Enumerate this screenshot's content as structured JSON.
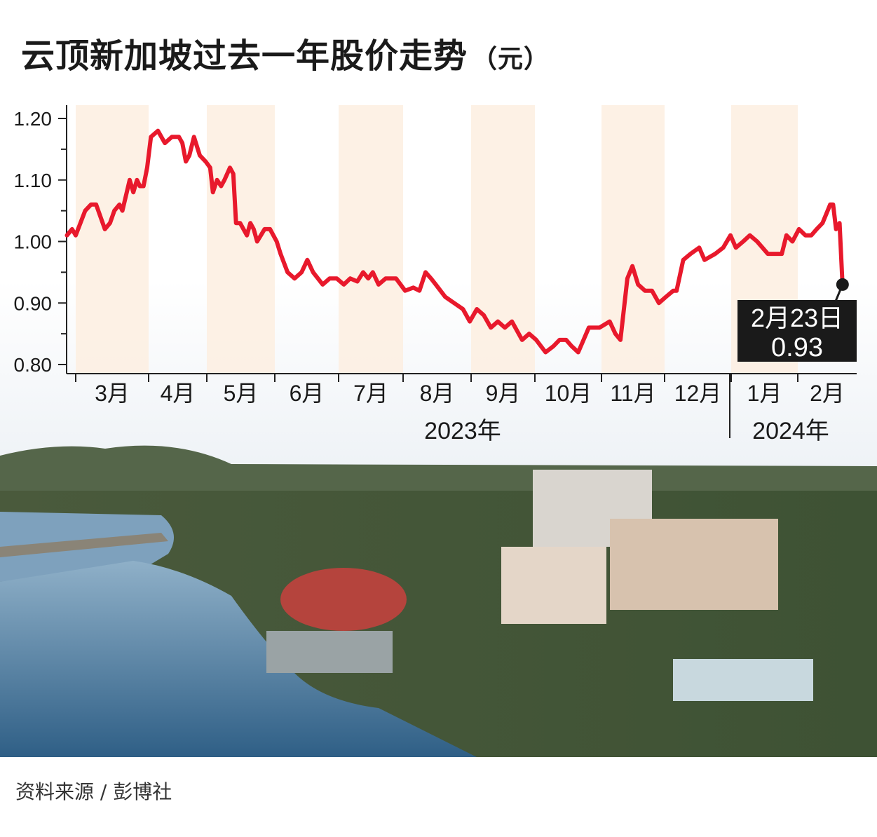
{
  "title": "云顶新加坡过去一年股价走势",
  "unit": "（元）",
  "source": "资料来源 / 彭博社",
  "colors": {
    "line": "#e8192c",
    "band": "#fdeee0",
    "axis": "#222222",
    "label_bg": "#1a1a1a"
  },
  "chart_data": {
    "type": "line",
    "title": "云顶新加坡过去一年股价走势（元）",
    "xlabel": "",
    "ylabel": "元",
    "ylim": [
      0.8,
      1.2
    ],
    "yticks": [
      "1.20",
      "1.10",
      "1.00",
      "0.90",
      "0.80"
    ],
    "ytick_values": [
      1.2,
      1.1,
      1.0,
      0.9,
      0.8
    ],
    "x_unit": "months since 2023-03-01",
    "months": [
      "3月",
      "4月",
      "5月",
      "6月",
      "7月",
      "8月",
      "9月",
      "10月",
      "11月",
      "12月",
      "1月",
      "2月"
    ],
    "years": [
      {
        "label": "2023年"
      },
      {
        "label": "2024年"
      }
    ],
    "shaded_months": [
      "3月",
      "5月",
      "7月",
      "9月",
      "11月",
      "1月"
    ],
    "grid": false,
    "series": [
      {
        "name": "股价",
        "points": [
          [
            -0.12,
            1.01
          ],
          [
            -0.05,
            1.02
          ],
          [
            0,
            1.01
          ],
          [
            0.13,
            1.05
          ],
          [
            0.21,
            1.06
          ],
          [
            0.28,
            1.06
          ],
          [
            0.4,
            1.02
          ],
          [
            0.47,
            1.03
          ],
          [
            0.53,
            1.05
          ],
          [
            0.6,
            1.06
          ],
          [
            0.64,
            1.05
          ],
          [
            0.74,
            1.1
          ],
          [
            0.79,
            1.08
          ],
          [
            0.84,
            1.1
          ],
          [
            0.88,
            1.09
          ],
          [
            0.93,
            1.09
          ],
          [
            0.98,
            1.12
          ],
          [
            1.04,
            1.17
          ],
          [
            1.16,
            1.18
          ],
          [
            1.28,
            1.16
          ],
          [
            1.4,
            1.17
          ],
          [
            1.52,
            1.17
          ],
          [
            1.58,
            1.16
          ],
          [
            1.64,
            1.13
          ],
          [
            1.7,
            1.14
          ],
          [
            1.78,
            1.17
          ],
          [
            1.88,
            1.14
          ],
          [
            1.98,
            1.13
          ],
          [
            2.05,
            1.12
          ],
          [
            2.09,
            1.08
          ],
          [
            2.15,
            1.1
          ],
          [
            2.21,
            1.09
          ],
          [
            2.26,
            1.1
          ],
          [
            2.34,
            1.12
          ],
          [
            2.39,
            1.11
          ],
          [
            2.43,
            1.03
          ],
          [
            2.49,
            1.03
          ],
          [
            2.59,
            1.01
          ],
          [
            2.64,
            1.03
          ],
          [
            2.69,
            1.02
          ],
          [
            2.74,
            1.0
          ],
          [
            2.85,
            1.02
          ],
          [
            2.93,
            1.02
          ],
          [
            3.03,
            1.0
          ],
          [
            3.09,
            0.98
          ],
          [
            3.2,
            0.95
          ],
          [
            3.31,
            0.94
          ],
          [
            3.42,
            0.95
          ],
          [
            3.51,
            0.97
          ],
          [
            3.6,
            0.95
          ],
          [
            3.75,
            0.93
          ],
          [
            3.86,
            0.94
          ],
          [
            3.97,
            0.94
          ],
          [
            4.08,
            0.93
          ],
          [
            4.18,
            0.94
          ],
          [
            4.29,
            0.935
          ],
          [
            4.38,
            0.95
          ],
          [
            4.46,
            0.94
          ],
          [
            4.53,
            0.95
          ],
          [
            4.62,
            0.93
          ],
          [
            4.73,
            0.94
          ],
          [
            4.82,
            0.94
          ],
          [
            4.89,
            0.94
          ],
          [
            5.03,
            0.92
          ],
          [
            5.15,
            0.925
          ],
          [
            5.24,
            0.92
          ],
          [
            5.33,
            0.95
          ],
          [
            5.41,
            0.94
          ],
          [
            5.48,
            0.93
          ],
          [
            5.62,
            0.91
          ],
          [
            5.75,
            0.9
          ],
          [
            5.88,
            0.89
          ],
          [
            5.98,
            0.87
          ],
          [
            6.09,
            0.89
          ],
          [
            6.2,
            0.88
          ],
          [
            6.31,
            0.86
          ],
          [
            6.42,
            0.87
          ],
          [
            6.53,
            0.86
          ],
          [
            6.64,
            0.87
          ],
          [
            6.8,
            0.84
          ],
          [
            6.91,
            0.85
          ],
          [
            7.02,
            0.84
          ],
          [
            7.16,
            0.82
          ],
          [
            7.28,
            0.83
          ],
          [
            7.37,
            0.84
          ],
          [
            7.47,
            0.84
          ],
          [
            7.55,
            0.83
          ],
          [
            7.65,
            0.82
          ],
          [
            7.81,
            0.86
          ],
          [
            7.97,
            0.86
          ],
          [
            8.13,
            0.87
          ],
          [
            8.22,
            0.85
          ],
          [
            8.3,
            0.84
          ],
          [
            8.41,
            0.94
          ],
          [
            8.49,
            0.96
          ],
          [
            8.58,
            0.93
          ],
          [
            8.69,
            0.92
          ],
          [
            8.8,
            0.92
          ],
          [
            8.91,
            0.9
          ],
          [
            9.02,
            0.91
          ],
          [
            9.13,
            0.92
          ],
          [
            9.18,
            0.92
          ],
          [
            9.28,
            0.97
          ],
          [
            9.39,
            0.98
          ],
          [
            9.52,
            0.99
          ],
          [
            9.6,
            0.97
          ],
          [
            9.76,
            0.98
          ],
          [
            9.88,
            0.99
          ],
          [
            9.99,
            1.01
          ],
          [
            10.07,
            0.99
          ],
          [
            10.18,
            1.0
          ],
          [
            10.28,
            1.01
          ],
          [
            10.39,
            1.0
          ],
          [
            10.55,
            0.98
          ],
          [
            10.63,
            0.98
          ],
          [
            10.76,
            0.98
          ],
          [
            10.83,
            1.01
          ],
          [
            10.92,
            1.0
          ],
          [
            11.02,
            1.02
          ],
          [
            11.13,
            1.01
          ],
          [
            11.23,
            1.01
          ],
          [
            11.32,
            1.02
          ],
          [
            11.42,
            1.03
          ],
          [
            11.55,
            1.06
          ],
          [
            11.6,
            1.06
          ],
          [
            11.65,
            1.02
          ],
          [
            11.71,
            1.03
          ],
          [
            11.76,
            0.93
          ]
        ]
      }
    ],
    "annotation": {
      "date": "2月23日",
      "value": "0.93",
      "x": 11.76,
      "y": 0.93
    }
  }
}
